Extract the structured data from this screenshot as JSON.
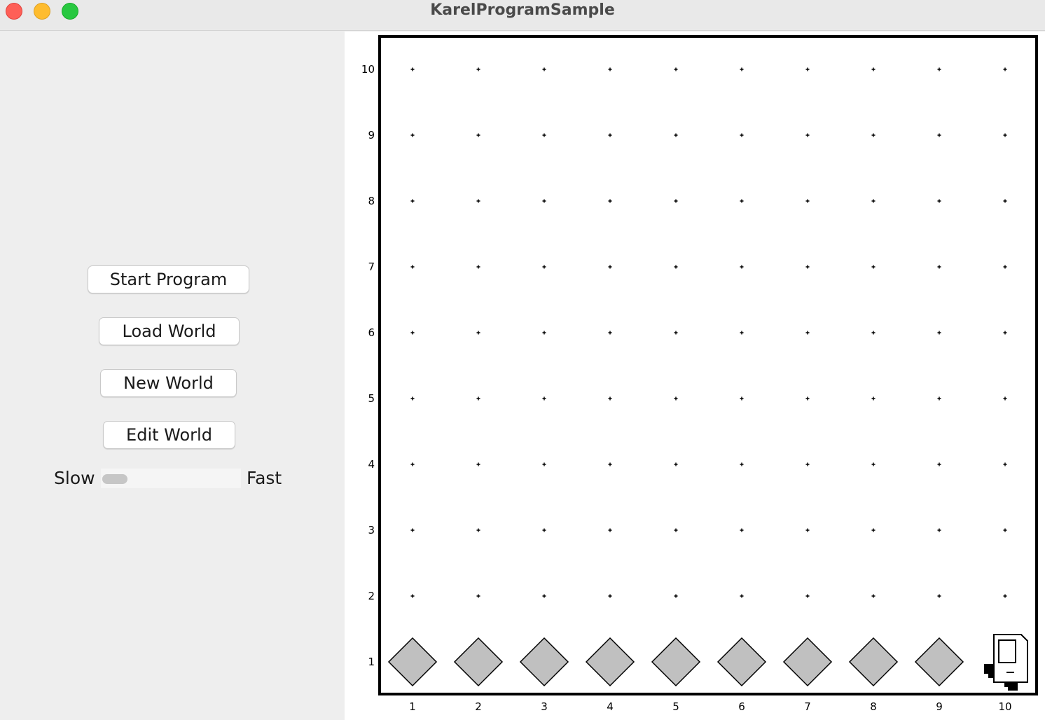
{
  "window": {
    "title": "KarelProgramSample"
  },
  "controls": {
    "start_program": "Start Program",
    "load_world": "Load World",
    "new_world": "New World",
    "edit_world": "Edit World"
  },
  "speed": {
    "slow_label": "Slow",
    "fast_label": "Fast",
    "value": 0.0
  },
  "world": {
    "avenues": 10,
    "streets": 10,
    "avenue_labels": [
      "1",
      "2",
      "3",
      "4",
      "5",
      "6",
      "7",
      "8",
      "9",
      "10"
    ],
    "street_labels": [
      "1",
      "2",
      "3",
      "4",
      "5",
      "6",
      "7",
      "8",
      "9",
      "10"
    ],
    "beepers": [
      {
        "avenue": 1,
        "street": 1
      },
      {
        "avenue": 2,
        "street": 1
      },
      {
        "avenue": 3,
        "street": 1
      },
      {
        "avenue": 4,
        "street": 1
      },
      {
        "avenue": 5,
        "street": 1
      },
      {
        "avenue": 6,
        "street": 1
      },
      {
        "avenue": 7,
        "street": 1
      },
      {
        "avenue": 8,
        "street": 1
      },
      {
        "avenue": 9,
        "street": 1
      }
    ],
    "karel": {
      "avenue": 10,
      "street": 1,
      "direction": "east"
    },
    "colors": {
      "beeper_fill": "#c0c0c0",
      "border": "#000000",
      "background": "#ffffff"
    }
  }
}
